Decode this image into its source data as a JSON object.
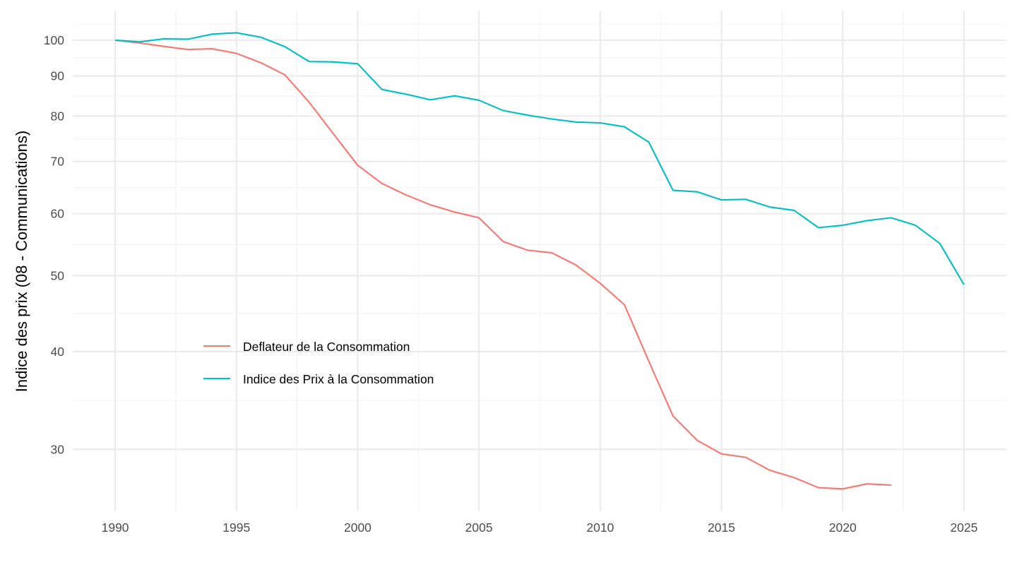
{
  "chart_data": {
    "type": "line",
    "title": "",
    "xlabel": "",
    "ylabel": "Indice des prix (08 - Communications)",
    "y_scale": "log10",
    "xlim": [
      1988.25,
      2026.75
    ],
    "ylim": [
      25.0,
      109.1
    ],
    "grid": true,
    "x_ticks": [
      1990,
      1995,
      2000,
      2005,
      2010,
      2015,
      2020,
      2025
    ],
    "x_tick_labels": [
      "1990",
      "1995",
      "2000",
      "2005",
      "2010",
      "2015",
      "2020",
      "2025"
    ],
    "y_ticks": [
      30,
      40,
      50,
      60,
      70,
      80,
      90,
      100
    ],
    "y_tick_labels": [
      "30",
      "40",
      "50",
      "60",
      "70",
      "80",
      "90",
      "100"
    ],
    "legend_position": "inside-bottom-left",
    "series": [
      {
        "name": "Deflateur de la Consommation",
        "color": "#f8766d",
        "x": [
          1990,
          1991,
          1992,
          1993,
          1994,
          1995,
          1996,
          1997,
          1998,
          1999,
          2000,
          2001,
          2002,
          2003,
          2004,
          2005,
          2006,
          2007,
          2008,
          2009,
          2010,
          2011,
          2012,
          2013,
          2014,
          2015,
          2016,
          2017,
          2018,
          2019,
          2020,
          2021,
          2022
        ],
        "values": [
          100,
          99.2,
          98.2,
          97.3,
          97.5,
          96.2,
          93.6,
          90.3,
          83.3,
          75.9,
          69.2,
          65.6,
          63.4,
          61.6,
          60.3,
          59.3,
          55.3,
          53.9,
          53.5,
          51.6,
          48.9,
          45.9,
          38.9,
          33.1,
          30.8,
          29.6,
          29.3,
          28.2,
          27.6,
          26.8,
          26.7,
          27.1,
          27.0
        ]
      },
      {
        "name": "Indice des Prix à la Consommation",
        "color": "#00bfc4",
        "x": [
          1990,
          1991,
          1992,
          1993,
          1994,
          1995,
          1996,
          1997,
          1998,
          1999,
          2000,
          2001,
          2002,
          2003,
          2004,
          2005,
          2006,
          2007,
          2008,
          2009,
          2010,
          2011,
          2012,
          2013,
          2014,
          2015,
          2016,
          2017,
          2018,
          2019,
          2020,
          2021,
          2022,
          2023,
          2024,
          2025
        ],
        "values": [
          100,
          99.5,
          100.4,
          100.3,
          101.8,
          102.2,
          100.9,
          98.1,
          93.9,
          93.8,
          93.3,
          86.5,
          85.3,
          83.9,
          84.9,
          83.8,
          81.3,
          80.2,
          79.3,
          78.6,
          78.4,
          77.5,
          74.1,
          64.3,
          64.0,
          62.5,
          62.6,
          61.2,
          60.6,
          57.6,
          58.0,
          58.8,
          59.3,
          58.0,
          55.0,
          48.7
        ]
      }
    ]
  }
}
